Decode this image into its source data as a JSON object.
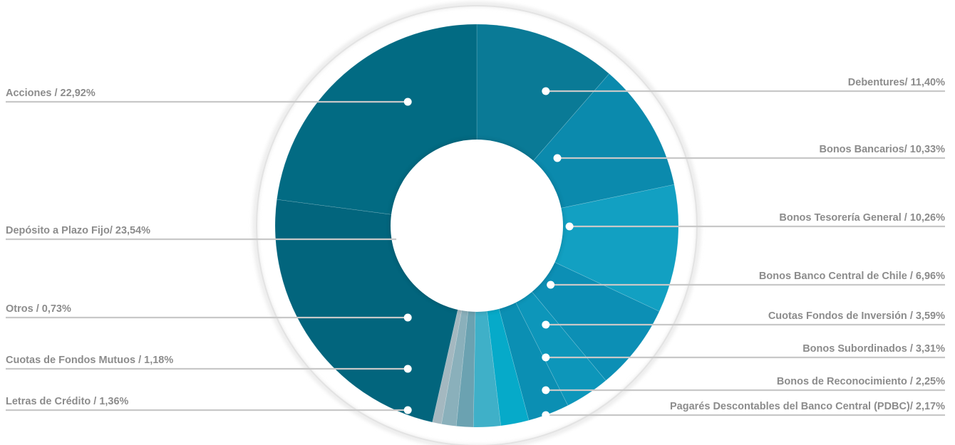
{
  "chart_data": {
    "type": "pie",
    "variant": "donut",
    "labels": [
      "Debentures/ 11,40%",
      "Bonos Bancarios/ 10,33%",
      "Bonos Tesorería General / 10,26%",
      "Bonos Banco Central de Chile / 6,96%",
      "Cuotas Fondos de Inversión / 3,59%",
      "Bonos Subordinados / 3,31%",
      "Bonos de Reconocimiento / 2,25%",
      "Pagarés Descontables del Banco Central (PDBC)/ 2,17%",
      "Letras de Crédito / 1,36%",
      "Cuotas de Fondos Mutuos / 1,18%",
      "Otros / 0,73%",
      "Depósito a Plazo Fijo/ 23,54%",
      "Acciones / 22,92%"
    ],
    "values": [
      11.4,
      10.33,
      10.26,
      6.96,
      3.59,
      3.31,
      2.25,
      2.17,
      1.36,
      1.18,
      0.73,
      23.54,
      22.92
    ],
    "colors": [
      "#0a7a96",
      "#0b8aad",
      "#12a0c2",
      "#0c8fb5",
      "#0d96ba",
      "#0b8fb3",
      "#06aac9",
      "#3fb0c8",
      "#6ba2b1",
      "#8ab0bb",
      "#a4b8c0",
      "#02657d",
      "#026b83"
    ],
    "label_sides": [
      "right",
      "right",
      "right",
      "right",
      "right",
      "right",
      "right",
      "right",
      "left",
      "left",
      "left",
      "left",
      "left"
    ],
    "label_line_color": "#c8c8c8",
    "label_text_color": "#8c8c8c",
    "start": "top",
    "direction": "clockwise",
    "legend": "none"
  }
}
